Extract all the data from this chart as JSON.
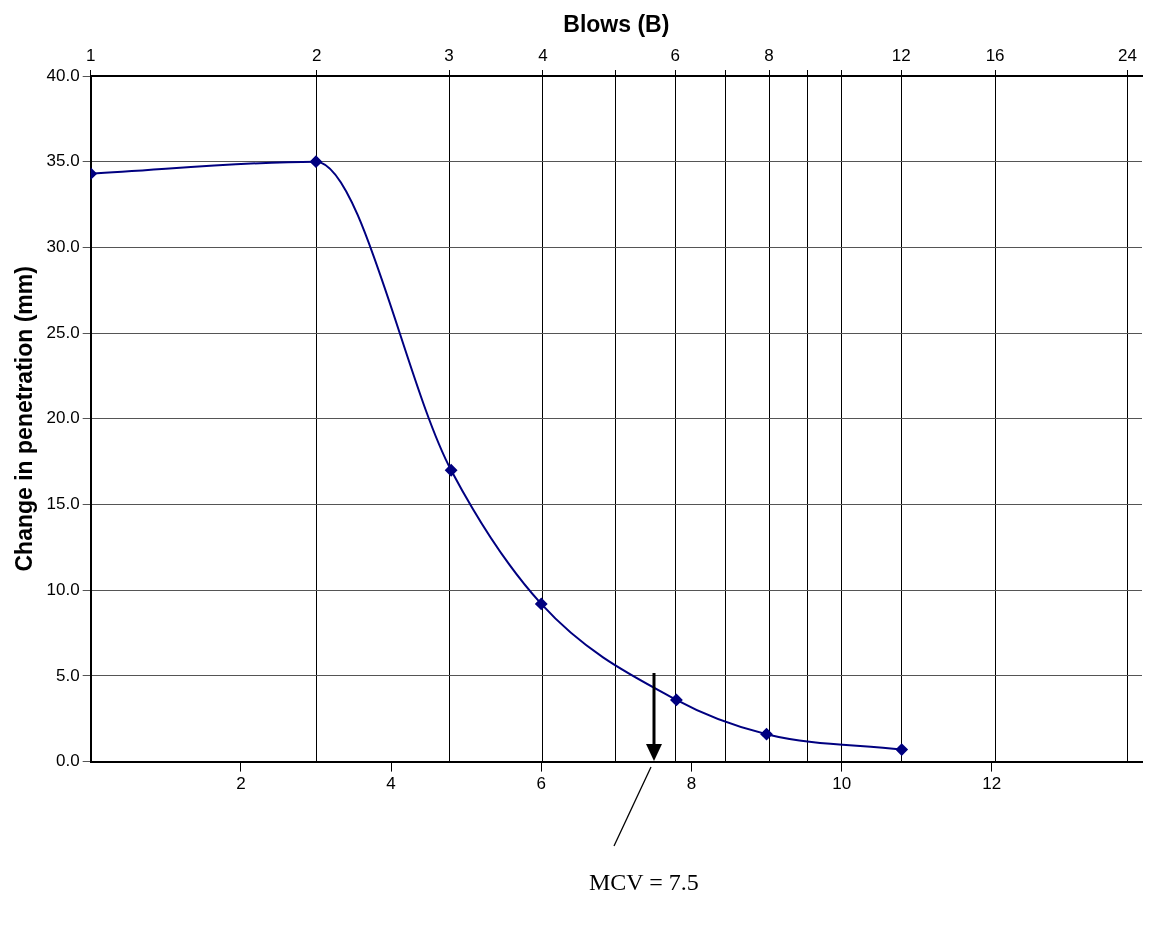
{
  "chart_data": {
    "type": "line",
    "x2label": "Blows (B)",
    "ylabel": "Change in penetration (mm)",
    "x": [
      0,
      3.0,
      4.8,
      6.0,
      7.8,
      9.0,
      10.8
    ],
    "series": [
      {
        "color": "#000080",
        "values": [
          34.3,
          35.0,
          17.0,
          9.2,
          3.6,
          1.6,
          0.7
        ]
      }
    ],
    "xlim": [
      0,
      14
    ],
    "xticks": [
      2,
      4,
      6,
      8,
      10,
      12
    ],
    "x2lim": [
      1,
      25.1
    ],
    "x2ticks": [
      1,
      2,
      3,
      4,
      {
        "value": 5,
        "label": null
      },
      6,
      {
        "value": 7,
        "label": null
      },
      8,
      {
        "value": 9,
        "label": null
      },
      {
        "value": 10,
        "label": null
      },
      12,
      16,
      24
    ],
    "ylim": [
      0,
      40
    ],
    "yticks": [
      {
        "value": 0,
        "label": "0.0"
      },
      {
        "value": 5,
        "label": "5.0"
      },
      {
        "value": 10,
        "label": "10.0"
      },
      {
        "value": 15,
        "label": "15.0"
      },
      {
        "value": 20,
        "label": "20.0"
      },
      {
        "value": 25,
        "label": "25.0"
      },
      {
        "value": 30,
        "label": "30.0"
      },
      {
        "value": 35,
        "label": "35.0"
      },
      {
        "value": 40,
        "label": "40.0"
      }
    ],
    "ref_lines": [
      {
        "axis": "x",
        "value": 7.5,
        "label": "MCV = 7.5",
        "color": "#000000"
      }
    ],
    "log": "x2",
    "grid": true,
    "legend": false,
    "marker": "diamond",
    "line_style": "solid"
  }
}
